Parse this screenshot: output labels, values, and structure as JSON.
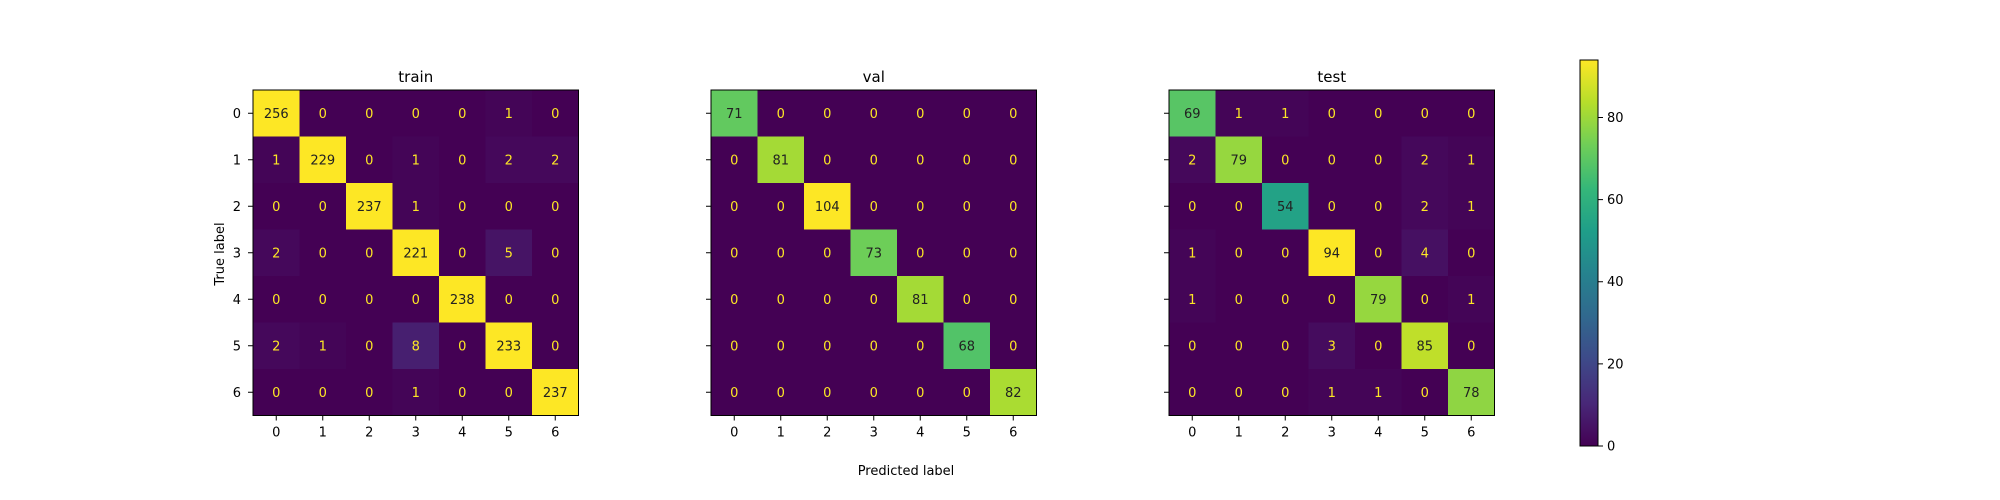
{
  "chart_data": {
    "type": "heatmap",
    "xlabel": "Predicted label",
    "ylabel": "True label",
    "tick_labels": [
      "0",
      "1",
      "2",
      "3",
      "4",
      "5",
      "6"
    ],
    "colorbar": {
      "ticks": [
        0,
        20,
        40,
        60,
        80
      ],
      "range": [
        0,
        94
      ],
      "colormap": [
        "#440154",
        "#482878",
        "#3e4989",
        "#31688e",
        "#26828e",
        "#1f9e89",
        "#35b779",
        "#6ece58",
        "#b5de2b",
        "#fde725"
      ]
    },
    "panels": [
      {
        "title": "train",
        "matrix": [
          [
            256,
            0,
            0,
            0,
            0,
            1,
            0
          ],
          [
            1,
            229,
            0,
            1,
            0,
            2,
            2
          ],
          [
            0,
            0,
            237,
            1,
            0,
            0,
            0
          ],
          [
            2,
            0,
            0,
            221,
            0,
            5,
            0
          ],
          [
            0,
            0,
            0,
            0,
            238,
            0,
            0
          ],
          [
            2,
            1,
            0,
            8,
            0,
            233,
            0
          ],
          [
            0,
            0,
            0,
            1,
            0,
            0,
            237
          ]
        ]
      },
      {
        "title": "val",
        "matrix": [
          [
            71,
            0,
            0,
            0,
            0,
            0,
            0
          ],
          [
            0,
            81,
            0,
            0,
            0,
            0,
            0
          ],
          [
            0,
            0,
            104,
            0,
            0,
            0,
            0
          ],
          [
            0,
            0,
            0,
            73,
            0,
            0,
            0
          ],
          [
            0,
            0,
            0,
            0,
            81,
            0,
            0
          ],
          [
            0,
            0,
            0,
            0,
            0,
            68,
            0
          ],
          [
            0,
            0,
            0,
            0,
            0,
            0,
            82
          ]
        ]
      },
      {
        "title": "test",
        "matrix": [
          [
            69,
            1,
            1,
            0,
            0,
            0,
            0
          ],
          [
            2,
            79,
            0,
            0,
            0,
            2,
            1
          ],
          [
            0,
            0,
            54,
            0,
            0,
            2,
            1
          ],
          [
            1,
            0,
            0,
            94,
            0,
            4,
            0
          ],
          [
            1,
            0,
            0,
            0,
            79,
            0,
            1
          ],
          [
            0,
            0,
            0,
            3,
            0,
            85,
            0
          ],
          [
            0,
            0,
            0,
            1,
            1,
            0,
            78
          ]
        ]
      }
    ]
  }
}
